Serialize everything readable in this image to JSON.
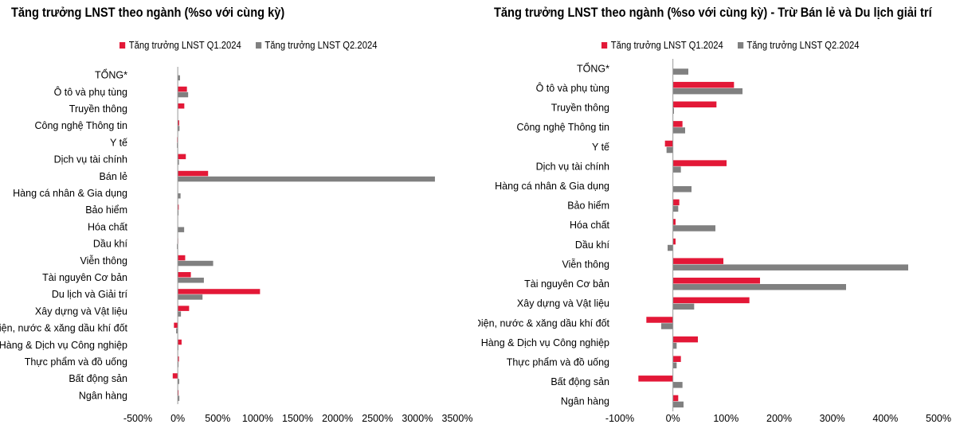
{
  "chart_data": [
    {
      "type": "bar",
      "orientation": "horizontal",
      "title": "Tăng trưởng LNST theo ngành (%so với cùng kỳ)",
      "categories": [
        "TỔNG*",
        "Ô tô và phụ tùng",
        "Truyền thông",
        "Công nghệ Thông tin",
        "Y tế",
        "Dịch vụ tài chính",
        "Bán lẻ",
        "Hàng cá nhân & Gia dụng",
        "Bảo hiểm",
        "Hóa chất",
        "Dầu khí",
        "Viễn thông",
        "Tài nguyên Cơ bản",
        "Du lịch và Giải trí",
        "Xây dựng và Vật liệu",
        "Điện, nước & xăng dầu khí đốt",
        "Hàng & Dịch vụ Công nghiệp",
        "Thực phẩm và đồ uống",
        "Bất động sản",
        "Ngân hàng"
      ],
      "series": [
        {
          "name": "Tăng trưởng LNST Q1.2024",
          "color": "#e31837",
          "values": [
            0,
            115,
            82,
            18,
            -8,
            101,
            380,
            0,
            12,
            0,
            5,
            93,
            164,
            1030,
            142,
            -48,
            48,
            15,
            -63,
            10
          ]
        },
        {
          "name": "Tăng trưởng LNST Q2.2024",
          "color": "#808080",
          "values": [
            28,
            130,
            2,
            22,
            -10,
            15,
            3220,
            35,
            10,
            80,
            -10,
            443,
            327,
            310,
            40,
            -20,
            8,
            10,
            18,
            20
          ]
        }
      ],
      "xlim": [
        -500,
        3500
      ],
      "xticks": [
        -500,
        0,
        500,
        1000,
        1500,
        2000,
        2500,
        3000,
        3500
      ],
      "xtick_labels": [
        "-500%",
        "0%",
        "500%",
        "1000%",
        "1500%",
        "2000%",
        "2500%",
        "3000%",
        "3500%"
      ],
      "legend_position": "top"
    },
    {
      "type": "bar",
      "orientation": "horizontal",
      "title": "Tăng trưởng LNST theo ngành (%so với cùng kỳ) - Trừ Bán lẻ và Du lịch giải trí",
      "categories": [
        "TỔNG*",
        "Ô tô và phụ tùng",
        "Truyền thông",
        "Công nghệ Thông tin",
        "Y tế",
        "Dịch vụ tài chính",
        "Hàng cá nhân & Gia dụng",
        "Bảo hiểm",
        "Hóa chất",
        "Dầu khí",
        "Viễn thông",
        "Tài nguyên Cơ bản",
        "Xây dựng và Vật liệu",
        "Điện, nước & xăng dầu khí đốt",
        "Hàng & Dịch vụ Công nghiệp",
        "Thực phẩm và đồ uống",
        "Bất động sản",
        "Ngân hàng"
      ],
      "series": [
        {
          "name": "Tăng trưởng LNST Q1.2024",
          "color": "#e31837",
          "values": [
            0,
            115,
            82,
            18,
            -15,
            101,
            0,
            12,
            5,
            5,
            95,
            164,
            144,
            -50,
            47,
            15,
            -65,
            10
          ]
        },
        {
          "name": "Tăng trưởng LNST Q2.2024",
          "color": "#808080",
          "values": [
            29,
            131,
            2,
            23,
            -12,
            15,
            35,
            10,
            80,
            -10,
            443,
            326,
            40,
            -22,
            7,
            7,
            18,
            20
          ]
        }
      ],
      "xlim": [
        -100,
        500
      ],
      "xticks": [
        -100,
        0,
        100,
        200,
        300,
        400,
        500
      ],
      "xtick_labels": [
        "-100%",
        "0%",
        "100%",
        "200%",
        "300%",
        "400%",
        "500%"
      ],
      "legend_position": "top"
    }
  ]
}
